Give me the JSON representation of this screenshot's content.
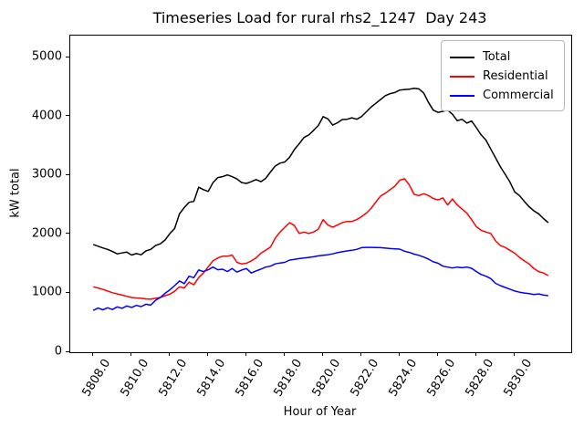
{
  "title": "Timeseries Load for rural rhs2_1247  Day 243",
  "axes": {
    "xlabel": "Hour of Year",
    "ylabel": "kW total",
    "x_tick_labels": [
      "5808.0",
      "5810.0",
      "5812.0",
      "5814.0",
      "5816.0",
      "5818.0",
      "5820.0",
      "5822.0",
      "5824.0",
      "5826.0",
      "5828.0",
      "5830.0"
    ],
    "y_tick_labels": [
      "0",
      "1000",
      "2000",
      "3000",
      "4000",
      "5000"
    ]
  },
  "legend": {
    "items": [
      {
        "label": "Total",
        "color": "#000000"
      },
      {
        "label": "Residential",
        "color": "#ff0000"
      },
      {
        "label": "Commercial",
        "color": "#0000ff"
      }
    ],
    "position": "upper right"
  },
  "chart_data": {
    "type": "line",
    "title": "Timeseries Load for rural rhs2_1247  Day 243",
    "xlabel": "Hour of Year",
    "ylabel": "kW total",
    "grid": false,
    "xlim": [
      5806.8,
      5832.95
    ],
    "ylim": [
      0,
      5375
    ],
    "x_ticks": [
      5808,
      5810,
      5812,
      5814,
      5816,
      5818,
      5820,
      5822,
      5824,
      5826,
      5828,
      5830
    ],
    "y_ticks": [
      0,
      1000,
      2000,
      3000,
      4000,
      5000
    ],
    "x": [
      5808.0,
      5808.25,
      5808.5,
      5808.75,
      5809.0,
      5809.25,
      5809.5,
      5809.75,
      5810.0,
      5810.25,
      5810.5,
      5810.75,
      5811.0,
      5811.25,
      5811.5,
      5811.75,
      5812.0,
      5812.25,
      5812.5,
      5812.75,
      5813.0,
      5813.25,
      5813.5,
      5813.75,
      5814.0,
      5814.25,
      5814.5,
      5814.75,
      5815.0,
      5815.25,
      5815.5,
      5815.75,
      5816.0,
      5816.25,
      5816.5,
      5816.75,
      5817.0,
      5817.25,
      5817.5,
      5817.75,
      5818.0,
      5818.25,
      5818.5,
      5818.75,
      5819.0,
      5819.25,
      5819.5,
      5819.75,
      5820.0,
      5820.25,
      5820.5,
      5820.75,
      5821.0,
      5821.25,
      5821.5,
      5821.75,
      5822.0,
      5822.25,
      5822.5,
      5822.75,
      5823.0,
      5823.25,
      5823.5,
      5823.75,
      5824.0,
      5824.25,
      5824.5,
      5824.75,
      5825.0,
      5825.25,
      5825.5,
      5825.75,
      5826.0,
      5826.25,
      5826.5,
      5826.75,
      5827.0,
      5827.25,
      5827.5,
      5827.75,
      5828.0,
      5828.25,
      5828.5,
      5828.75,
      5829.0,
      5829.25,
      5829.5,
      5829.75,
      5830.0,
      5830.25,
      5830.5,
      5830.75,
      5831.0,
      5831.25,
      5831.5,
      5831.75
    ],
    "series": [
      {
        "name": "Total",
        "color": "#000000",
        "values": [
          1830,
          1800,
          1770,
          1745,
          1710,
          1670,
          1685,
          1700,
          1650,
          1675,
          1655,
          1720,
          1745,
          1810,
          1840,
          1905,
          2015,
          2100,
          2350,
          2455,
          2545,
          2560,
          2800,
          2760,
          2730,
          2880,
          2965,
          2980,
          3010,
          2980,
          2940,
          2880,
          2865,
          2895,
          2930,
          2895,
          2950,
          3060,
          3160,
          3210,
          3230,
          3310,
          3440,
          3540,
          3645,
          3690,
          3765,
          3850,
          4000,
          3960,
          3855,
          3895,
          3950,
          3955,
          3980,
          3955,
          4000,
          4080,
          4160,
          4225,
          4290,
          4355,
          4390,
          4410,
          4450,
          4460,
          4465,
          4480,
          4470,
          4400,
          4240,
          4110,
          4070,
          4090,
          4110,
          4040,
          3930,
          3955,
          3890,
          3925,
          3810,
          3690,
          3600,
          3450,
          3300,
          3150,
          3020,
          2890,
          2720,
          2660,
          2560,
          2470,
          2400,
          2350,
          2270,
          2200
        ]
      },
      {
        "name": "Residential",
        "color": "#ff0000",
        "values": [
          1110,
          1090,
          1065,
          1040,
          1010,
          990,
          970,
          950,
          930,
          920,
          915,
          905,
          900,
          915,
          930,
          960,
          985,
          1035,
          1110,
          1090,
          1190,
          1145,
          1265,
          1345,
          1450,
          1550,
          1600,
          1630,
          1630,
          1650,
          1525,
          1500,
          1510,
          1550,
          1600,
          1680,
          1730,
          1785,
          1935,
          2040,
          2120,
          2200,
          2150,
          2015,
          2040,
          2015,
          2040,
          2090,
          2250,
          2160,
          2120,
          2160,
          2200,
          2220,
          2220,
          2250,
          2300,
          2360,
          2440,
          2550,
          2650,
          2700,
          2760,
          2820,
          2920,
          2945,
          2840,
          2680,
          2660,
          2690,
          2660,
          2610,
          2585,
          2620,
          2500,
          2600,
          2500,
          2430,
          2360,
          2250,
          2130,
          2070,
          2040,
          2015,
          1890,
          1810,
          1780,
          1730,
          1680,
          1610,
          1550,
          1500,
          1420,
          1370,
          1345,
          1300
        ]
      },
      {
        "name": "Commercial",
        "color": "#0000ff",
        "values": [
          710,
          750,
          720,
          755,
          725,
          770,
          745,
          785,
          760,
          795,
          775,
          815,
          800,
          880,
          930,
          1000,
          1060,
          1130,
          1210,
          1165,
          1290,
          1265,
          1395,
          1370,
          1400,
          1445,
          1400,
          1410,
          1370,
          1420,
          1360,
          1395,
          1420,
          1345,
          1380,
          1410,
          1445,
          1460,
          1500,
          1515,
          1525,
          1565,
          1575,
          1590,
          1600,
          1610,
          1620,
          1635,
          1645,
          1655,
          1670,
          1690,
          1705,
          1720,
          1730,
          1745,
          1775,
          1780,
          1780,
          1778,
          1775,
          1768,
          1760,
          1755,
          1750,
          1715,
          1695,
          1665,
          1645,
          1615,
          1580,
          1535,
          1510,
          1460,
          1445,
          1430,
          1445,
          1435,
          1445,
          1425,
          1370,
          1320,
          1290,
          1250,
          1170,
          1130,
          1100,
          1070,
          1040,
          1020,
          1005,
          995,
          980,
          990,
          970,
          960
        ]
      }
    ]
  }
}
